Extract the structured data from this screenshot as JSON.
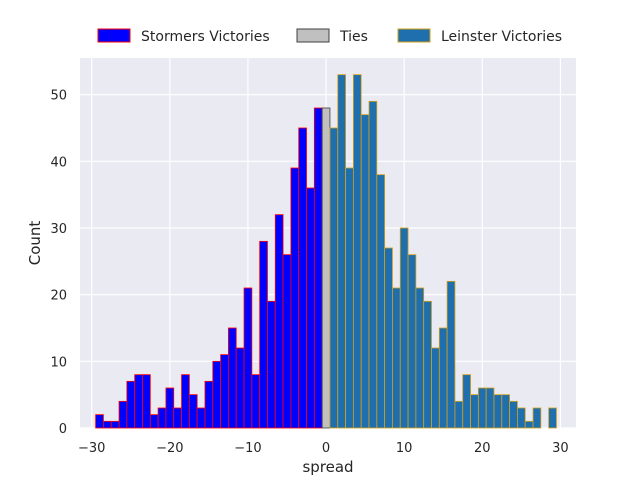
{
  "chart_data": {
    "type": "bar",
    "xlabel": "spread",
    "ylabel": "Count",
    "xlim": [
      -31.5,
      32
    ],
    "ylim": [
      0,
      55.5
    ],
    "xticks": [
      -30,
      -20,
      -10,
      0,
      10,
      20,
      30
    ],
    "yticks": [
      0,
      10,
      20,
      30,
      40,
      50
    ],
    "grid": true,
    "legend_placement": "top-center, above plot",
    "bin_width": 1,
    "series": [
      {
        "name": "Stormers Victories",
        "fill": "#0000ff",
        "edge": "#ff0000",
        "x": [
          -29,
          -28,
          -27,
          -26,
          -25,
          -24,
          -23,
          -22,
          -21,
          -20,
          -19,
          -18,
          -17,
          -16,
          -15,
          -14,
          -13,
          -12,
          -11,
          -10,
          -9,
          -8,
          -7,
          -6,
          -5,
          -4,
          -3,
          -2,
          -1
        ],
        "values": [
          2,
          1,
          1,
          4,
          7,
          8,
          8,
          2,
          3,
          6,
          3,
          8,
          5,
          3,
          7,
          10,
          11,
          15,
          12,
          21,
          8,
          28,
          19,
          32,
          26,
          39,
          45,
          36,
          48
        ]
      },
      {
        "name": "Ties",
        "fill": "#c0c0c0",
        "edge": "#404040",
        "x": [
          0
        ],
        "values": [
          48
        ]
      },
      {
        "name": "Leinster Victories",
        "fill": "#1f6fae",
        "edge": "#d4a017",
        "x": [
          1,
          2,
          3,
          4,
          5,
          6,
          7,
          8,
          9,
          10,
          11,
          12,
          13,
          14,
          15,
          16,
          17,
          18,
          19,
          20,
          21,
          22,
          23,
          24,
          25,
          26,
          27,
          28,
          29
        ],
        "values": [
          45,
          53,
          39,
          53,
          47,
          49,
          38,
          27,
          21,
          30,
          26,
          21,
          19,
          12,
          15,
          22,
          4,
          8,
          5,
          6,
          6,
          5,
          5,
          4,
          3,
          1,
          3,
          0,
          3
        ]
      }
    ]
  }
}
